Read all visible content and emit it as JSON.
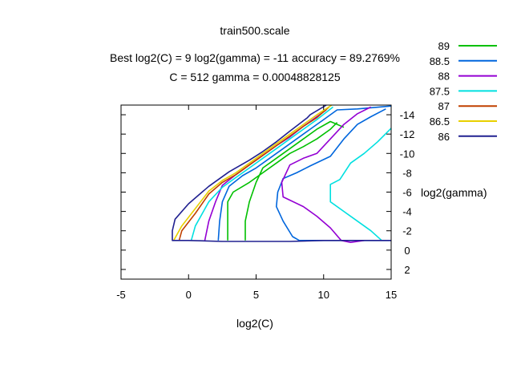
{
  "chart_data": {
    "type": "line",
    "title": "train500.scale",
    "subtitle_lines": [
      "Best log2(C) = 9  log2(gamma) = -11  accuracy = 89.2769%",
      "C = 512  gamma = 0.00048828125"
    ],
    "xlabel": "log2(C)",
    "ylabel": "log2(gamma)",
    "xlim": [
      -5,
      15
    ],
    "ylim": [
      -15,
      3
    ],
    "y_reversed": true,
    "grid": false,
    "legend_position": "top-right",
    "xticks": [
      {
        "value": -5,
        "label": "-5"
      },
      {
        "value": 0,
        "label": "0"
      },
      {
        "value": 5,
        "label": "5"
      },
      {
        "value": 10,
        "label": "10"
      },
      {
        "value": 15,
        "label": "15"
      }
    ],
    "yticks": [
      {
        "value": -14,
        "label": "-14"
      },
      {
        "value": -12,
        "label": "-12"
      },
      {
        "value": -10,
        "label": "-10"
      },
      {
        "value": -8,
        "label": "-8"
      },
      {
        "value": -6,
        "label": "-6"
      },
      {
        "value": -4,
        "label": "-4"
      },
      {
        "value": -2,
        "label": "-2"
      },
      {
        "value": 0,
        "label": "0"
      },
      {
        "value": 2,
        "label": "2"
      }
    ],
    "series": [
      {
        "name": "89",
        "color": "#00c000",
        "lines": [
          [
            [
              11.5,
              -12.7
            ],
            [
              10.5,
              -13.3
            ],
            [
              9.5,
              -12.5
            ],
            [
              8.5,
              -11.5
            ],
            [
              7.5,
              -10.5
            ],
            [
              6.5,
              -9.5
            ],
            [
              5.5,
              -8.5
            ],
            [
              5,
              -7
            ],
            [
              4.5,
              -5
            ],
            [
              4.2,
              -3
            ],
            [
              4.2,
              -1
            ]
          ],
          [
            [
              2.9,
              -1
            ],
            [
              2.9,
              -3
            ],
            [
              2.9,
              -5
            ],
            [
              3.3,
              -6
            ],
            [
              4.5,
              -7
            ],
            [
              5.5,
              -8
            ],
            [
              6.5,
              -9
            ],
            [
              7.5,
              -10
            ],
            [
              8.5,
              -10.7
            ],
            [
              9.5,
              -11.5
            ],
            [
              10.5,
              -12.5
            ],
            [
              11,
              -13.2
            ]
          ]
        ]
      },
      {
        "name": "88.5",
        "color": "#0066dd",
        "lines": [
          [
            [
              14.6,
              -14.6
            ],
            [
              13.5,
              -13.8
            ],
            [
              12.5,
              -13
            ],
            [
              11.5,
              -11.5
            ],
            [
              10.5,
              -9.7
            ],
            [
              9,
              -8.7
            ],
            [
              8,
              -8
            ],
            [
              7,
              -7.4
            ],
            [
              6.6,
              -6
            ],
            [
              6.5,
              -4.5
            ],
            [
              7,
              -3
            ],
            [
              7.7,
              -1.4
            ],
            [
              8.2,
              -1
            ]
          ],
          [
            [
              15,
              -14.9
            ],
            [
              12.5,
              -14.6
            ],
            [
              11,
              -14.5
            ],
            [
              10,
              -13.5
            ],
            [
              9,
              -12.5
            ],
            [
              8,
              -11.5
            ],
            [
              7,
              -10.5
            ],
            [
              6,
              -9.5
            ],
            [
              5,
              -8.5
            ],
            [
              4,
              -7.7
            ],
            [
              3,
              -6.6
            ],
            [
              2.5,
              -5
            ],
            [
              2.3,
              -3
            ],
            [
              2.2,
              -1
            ]
          ],
          [
            [
              8.2,
              -1
            ],
            [
              10.5,
              -1
            ],
            [
              12.5,
              -1
            ],
            [
              15,
              -1
            ]
          ]
        ]
      },
      {
        "name": "88",
        "color": "#9400d3",
        "lines": [
          [
            [
              13.5,
              -14.8
            ],
            [
              12.5,
              -14.1
            ],
            [
              11.5,
              -13
            ],
            [
              10.5,
              -11.5
            ],
            [
              9.5,
              -10
            ],
            [
              8.5,
              -9.5
            ],
            [
              7.5,
              -8.8
            ],
            [
              6.9,
              -7
            ],
            [
              7,
              -5.5
            ],
            [
              8.5,
              -4.5
            ],
            [
              9.5,
              -3.5
            ],
            [
              10.5,
              -2.3
            ],
            [
              11.3,
              -1
            ]
          ],
          [
            [
              10.2,
              -14.5
            ],
            [
              8.5,
              -12.8
            ],
            [
              7.5,
              -11.7
            ],
            [
              6.5,
              -10.8
            ],
            [
              5.5,
              -9.8
            ],
            [
              4.5,
              -8.8
            ],
            [
              3.5,
              -7.8
            ],
            [
              2.5,
              -6.7
            ],
            [
              2,
              -5
            ],
            [
              1.5,
              -3
            ],
            [
              1.2,
              -1
            ]
          ],
          [
            [
              11.3,
              -1
            ],
            [
              12,
              -0.8
            ],
            [
              13,
              -1
            ]
          ]
        ]
      },
      {
        "name": "87.5",
        "color": "#00e0e0",
        "lines": [
          [
            [
              10.7,
              -14.8
            ],
            [
              9.5,
              -13.5
            ],
            [
              8.5,
              -12.5
            ],
            [
              7.5,
              -11.5
            ],
            [
              6.5,
              -10.5
            ],
            [
              5.5,
              -9.5
            ],
            [
              4.5,
              -8.5
            ],
            [
              3.5,
              -7.5
            ],
            [
              2.5,
              -6.5
            ],
            [
              1.5,
              -5
            ],
            [
              0.5,
              -2.5
            ],
            [
              0.2,
              -1
            ]
          ],
          [
            [
              15,
              -12.6
            ],
            [
              14,
              -11.2
            ],
            [
              13,
              -10
            ],
            [
              12,
              -9
            ],
            [
              11.2,
              -7.3
            ],
            [
              10.5,
              -6.8
            ],
            [
              10.5,
              -5
            ],
            [
              11.5,
              -4
            ],
            [
              12.5,
              -3
            ],
            [
              13.5,
              -2
            ],
            [
              14.3,
              -1
            ]
          ]
        ]
      },
      {
        "name": "87",
        "color": "#c04000",
        "lines": [
          [
            [
              10.4,
              -14.8
            ],
            [
              9.5,
              -13.7
            ],
            [
              8.5,
              -12.8
            ],
            [
              7.5,
              -11.8
            ],
            [
              6.5,
              -10.8
            ],
            [
              5.5,
              -9.8
            ],
            [
              4.5,
              -8.8
            ],
            [
              3.5,
              -7.8
            ],
            [
              2.5,
              -7
            ],
            [
              1.5,
              -5.8
            ],
            [
              0.5,
              -3.8
            ],
            [
              -0.5,
              -2
            ],
            [
              -0.7,
              -1
            ]
          ]
        ]
      },
      {
        "name": "86.5",
        "color": "#e8d000",
        "lines": [
          [
            [
              10.6,
              -15
            ],
            [
              9.5,
              -14
            ],
            [
              8.5,
              -13
            ],
            [
              7.5,
              -12
            ],
            [
              6.5,
              -11
            ],
            [
              5.5,
              -10
            ],
            [
              4.5,
              -9
            ],
            [
              3.5,
              -8
            ],
            [
              2.5,
              -7.2
            ],
            [
              1.5,
              -6.1
            ],
            [
              0.5,
              -4.3
            ],
            [
              -0.5,
              -2.5
            ],
            [
              -1.1,
              -1
            ]
          ]
        ]
      },
      {
        "name": "86",
        "color": "#202090",
        "lines": [
          [
            [
              10.2,
              -15
            ],
            [
              9,
              -14
            ],
            [
              8.8,
              -13.7
            ],
            [
              7.5,
              -12.3
            ],
            [
              6.5,
              -11.2
            ],
            [
              5.5,
              -10.2
            ],
            [
              4.5,
              -9.3
            ],
            [
              3,
              -8.1
            ],
            [
              1.5,
              -6.6
            ],
            [
              1,
              -6
            ],
            [
              0,
              -4.8
            ],
            [
              -1,
              -3.2
            ],
            [
              -1.2,
              -2
            ],
            [
              -1.2,
              -1
            ],
            [
              0,
              -1
            ],
            [
              2.5,
              -0.9
            ],
            [
              5,
              -0.9
            ],
            [
              7.5,
              -0.9
            ],
            [
              10,
              -1
            ],
            [
              12.5,
              -1
            ],
            [
              15,
              -1
            ]
          ]
        ]
      }
    ]
  }
}
